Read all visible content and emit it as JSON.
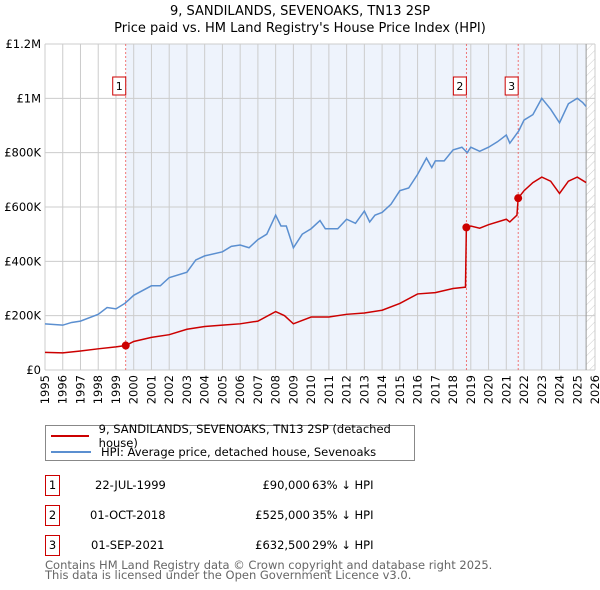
{
  "title": "9, SANDILANDS, SEVENOAKS, TN13 2SP",
  "subtitle": "Price paid vs. HM Land Registry's House Price Index (HPI)",
  "colors": {
    "property": "#cc0000",
    "hpi": "#5b8fd0",
    "shade": "#eef3fc"
  },
  "chart_data": {
    "type": "line",
    "ylim": [
      0,
      1200000
    ],
    "xlim": [
      1995,
      2026
    ],
    "yticks": [
      {
        "v": 0,
        "label": "£0"
      },
      {
        "v": 200000,
        "label": "£200K"
      },
      {
        "v": 400000,
        "label": "£400K"
      },
      {
        "v": 600000,
        "label": "£600K"
      },
      {
        "v": 800000,
        "label": "£800K"
      },
      {
        "v": 1000000,
        "label": "£1M"
      },
      {
        "v": 1200000,
        "label": "£1.2M"
      }
    ],
    "xticks": [
      "1995",
      "1996",
      "1997",
      "1998",
      "1999",
      "2000",
      "2001",
      "2002",
      "2003",
      "2004",
      "2005",
      "2006",
      "2007",
      "2008",
      "2009",
      "2010",
      "2011",
      "2012",
      "2013",
      "2014",
      "2015",
      "2016",
      "2017",
      "2018",
      "2019",
      "2020",
      "2021",
      "2022",
      "2023",
      "2024",
      "2025",
      "2026"
    ],
    "series": [
      {
        "name": "9, SANDILANDS, SEVENOAKS, TN13 2SP (detached house)",
        "color": "#cc0000",
        "points": [
          [
            1995,
            65000
          ],
          [
            1996,
            63000
          ],
          [
            1997,
            70000
          ],
          [
            1998,
            78000
          ],
          [
            1999,
            85000
          ],
          [
            1999.55,
            90000
          ],
          [
            2000,
            105000
          ],
          [
            2001,
            120000
          ],
          [
            2002,
            130000
          ],
          [
            2003,
            150000
          ],
          [
            2004,
            160000
          ],
          [
            2005,
            165000
          ],
          [
            2006,
            170000
          ],
          [
            2007,
            180000
          ],
          [
            2008,
            215000
          ],
          [
            2008.5,
            200000
          ],
          [
            2009,
            170000
          ],
          [
            2010,
            195000
          ],
          [
            2011,
            195000
          ],
          [
            2012,
            205000
          ],
          [
            2013,
            210000
          ],
          [
            2014,
            220000
          ],
          [
            2015,
            245000
          ],
          [
            2016,
            280000
          ],
          [
            2017,
            285000
          ],
          [
            2018,
            300000
          ],
          [
            2018.7,
            305000
          ],
          [
            2018.75,
            525000
          ],
          [
            2019,
            530000
          ],
          [
            2019.5,
            522000
          ],
          [
            2020,
            535000
          ],
          [
            2021,
            555000
          ],
          [
            2021.2,
            545000
          ],
          [
            2021.6,
            570000
          ],
          [
            2021.67,
            632500
          ],
          [
            2022,
            660000
          ],
          [
            2022.5,
            690000
          ],
          [
            2023,
            710000
          ],
          [
            2023.5,
            695000
          ],
          [
            2024,
            650000
          ],
          [
            2024.5,
            695000
          ],
          [
            2025,
            710000
          ],
          [
            2025.5,
            690000
          ]
        ]
      },
      {
        "name": "HPI: Average price, detached house, Sevenoaks",
        "color": "#5b8fd0",
        "points": [
          [
            1995,
            170000
          ],
          [
            1996,
            165000
          ],
          [
            1996.5,
            175000
          ],
          [
            1997,
            180000
          ],
          [
            1998,
            205000
          ],
          [
            1998.5,
            230000
          ],
          [
            1999,
            225000
          ],
          [
            1999.5,
            245000
          ],
          [
            2000,
            275000
          ],
          [
            2001,
            310000
          ],
          [
            2001.5,
            310000
          ],
          [
            2002,
            340000
          ],
          [
            2003,
            360000
          ],
          [
            2003.5,
            405000
          ],
          [
            2004,
            420000
          ],
          [
            2005,
            435000
          ],
          [
            2005.5,
            455000
          ],
          [
            2006,
            460000
          ],
          [
            2006.5,
            450000
          ],
          [
            2007,
            480000
          ],
          [
            2007.5,
            500000
          ],
          [
            2008,
            570000
          ],
          [
            2008.3,
            530000
          ],
          [
            2008.6,
            530000
          ],
          [
            2009,
            450000
          ],
          [
            2009.5,
            500000
          ],
          [
            2010,
            520000
          ],
          [
            2010.5,
            550000
          ],
          [
            2010.8,
            520000
          ],
          [
            2011.5,
            520000
          ],
          [
            2012,
            555000
          ],
          [
            2012.5,
            540000
          ],
          [
            2013,
            585000
          ],
          [
            2013.3,
            545000
          ],
          [
            2013.6,
            570000
          ],
          [
            2014,
            580000
          ],
          [
            2014.5,
            610000
          ],
          [
            2015,
            660000
          ],
          [
            2015.5,
            670000
          ],
          [
            2016,
            720000
          ],
          [
            2016.5,
            780000
          ],
          [
            2016.8,
            745000
          ],
          [
            2017,
            770000
          ],
          [
            2017.5,
            770000
          ],
          [
            2018,
            810000
          ],
          [
            2018.5,
            820000
          ],
          [
            2018.8,
            800000
          ],
          [
            2019,
            820000
          ],
          [
            2019.5,
            805000
          ],
          [
            2020,
            820000
          ],
          [
            2020.5,
            840000
          ],
          [
            2021,
            865000
          ],
          [
            2021.2,
            835000
          ],
          [
            2021.7,
            880000
          ],
          [
            2022,
            920000
          ],
          [
            2022.5,
            940000
          ],
          [
            2023,
            1000000
          ],
          [
            2023.5,
            960000
          ],
          [
            2024,
            910000
          ],
          [
            2024.5,
            980000
          ],
          [
            2025,
            1000000
          ],
          [
            2025.3,
            985000
          ],
          [
            2025.5,
            970000
          ]
        ]
      }
    ],
    "sales": [
      {
        "label": "1",
        "x": 1999.55,
        "y": 90000
      },
      {
        "label": "2",
        "x": 2018.75,
        "y": 525000
      },
      {
        "label": "3",
        "x": 2021.67,
        "y": 632500
      }
    ],
    "shaded_from": 1999.55,
    "hatched_from": 2025.5
  },
  "legend": [
    "9, SANDILANDS, SEVENOAKS, TN13 2SP (detached house)",
    "HPI: Average price, detached house, Sevenoaks"
  ],
  "table": [
    {
      "num": "1",
      "date": "22-JUL-1999",
      "price": "£90,000",
      "hpi": "63% ↓ HPI"
    },
    {
      "num": "2",
      "date": "01-OCT-2018",
      "price": "£525,000",
      "hpi": "35% ↓ HPI"
    },
    {
      "num": "3",
      "date": "01-SEP-2021",
      "price": "£632,500",
      "hpi": "29% ↓ HPI"
    }
  ],
  "footer": [
    "Contains HM Land Registry data © Crown copyright and database right 2025.",
    "This data is licensed under the Open Government Licence v3.0."
  ]
}
